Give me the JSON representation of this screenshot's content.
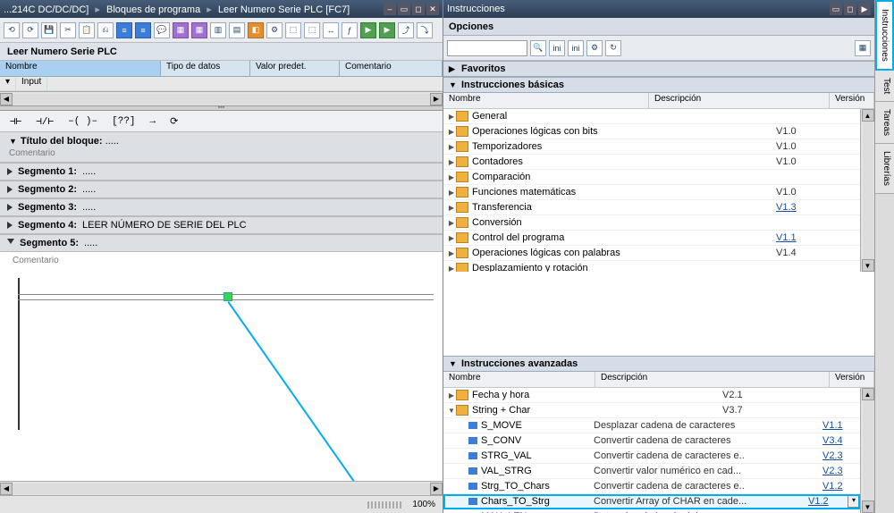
{
  "leftTitle": {
    "crumb1": "...214C DC/DC/DC]",
    "crumb2": "Bloques de programa",
    "crumb3": "Leer Numero Serie PLC [FC7]"
  },
  "rightTitle": "Instrucciones",
  "opciones": "Opciones",
  "blockTitle": "Leer Numero Serie PLC",
  "iface": {
    "name": "Nombre",
    "tipo": "Tipo de datos",
    "valor": "Valor predet.",
    "com": "Comentario",
    "input": "Input"
  },
  "ladBtns": [
    "⊣⊢",
    "⊣/⊢",
    "–( )–",
    "[??]",
    "→",
    "⟳"
  ],
  "blockHdr": {
    "title": "Título del bloque:",
    "dots": ".....",
    "comment": "Comentario"
  },
  "segments": [
    {
      "label": "Segmento 1:",
      "note": "....."
    },
    {
      "label": "Segmento 2:",
      "note": "....."
    },
    {
      "label": "Segmento 3:",
      "note": "....."
    },
    {
      "label": "Segmento 4:",
      "note": "LEER NÚMERO DE SERIE DEL PLC"
    },
    {
      "label": "Segmento 5:",
      "note": "....."
    }
  ],
  "seg5comment": "Comentario",
  "footerZoom": "100%",
  "favoritos": "Favoritos",
  "basicas": "Instrucciones básicas",
  "avanzadas": "Instrucciones avanzadas",
  "cols": {
    "name": "Nombre",
    "desc": "Descripción",
    "ver": "Versión"
  },
  "basicTree": [
    {
      "name": "General",
      "ver": "",
      "plain": true
    },
    {
      "name": "Operaciones lógicas con bits",
      "ver": "V1.0",
      "plain": true
    },
    {
      "name": "Temporizadores",
      "ver": "V1.0",
      "plain": true
    },
    {
      "name": "Contadores",
      "ver": "V1.0",
      "plain": true
    },
    {
      "name": "Comparación",
      "ver": "",
      "plain": true
    },
    {
      "name": "Funciones matemáticas",
      "ver": "V1.0",
      "plain": true
    },
    {
      "name": "Transferencia",
      "ver": "V1.3",
      "plain": false
    },
    {
      "name": "Conversión",
      "ver": "",
      "plain": true
    },
    {
      "name": "Control del programa",
      "ver": "V1.1",
      "plain": false
    },
    {
      "name": "Operaciones lógicas con palabras",
      "ver": "V1.4",
      "plain": true
    },
    {
      "name": "Desplazamiento y rotación",
      "ver": "",
      "plain": true
    }
  ],
  "advTree": {
    "fecha": {
      "name": "Fecha y hora",
      "ver": "V2.1"
    },
    "string": {
      "name": "String + Char",
      "ver": "V3.7"
    },
    "items": [
      {
        "name": "S_MOVE",
        "desc": "Desplazar cadena de caracteres",
        "ver": "V1.1"
      },
      {
        "name": "S_CONV",
        "desc": "Convertir cadena de caracteres",
        "ver": "V3.4"
      },
      {
        "name": "STRG_VAL",
        "desc": "Convertir cadena de caracteres e..",
        "ver": "V2.3"
      },
      {
        "name": "VAL_STRG",
        "desc": "Convertir valor numérico en cad...",
        "ver": "V2.3"
      },
      {
        "name": "Strg_TO_Chars",
        "desc": "Convertir cadena de caracteres e..",
        "ver": "V1.2"
      },
      {
        "name": "Chars_TO_Strg",
        "desc": "Convertir Array of CHAR en cade...",
        "ver": "V1.2",
        "hl": true
      },
      {
        "name": "MAX_LEN",
        "desc": "Determinar la longitud de una ca..",
        "ver": ""
      }
    ]
  },
  "sideTabs": [
    "Instrucciones",
    "Test",
    "Tareas",
    "Librerías"
  ]
}
